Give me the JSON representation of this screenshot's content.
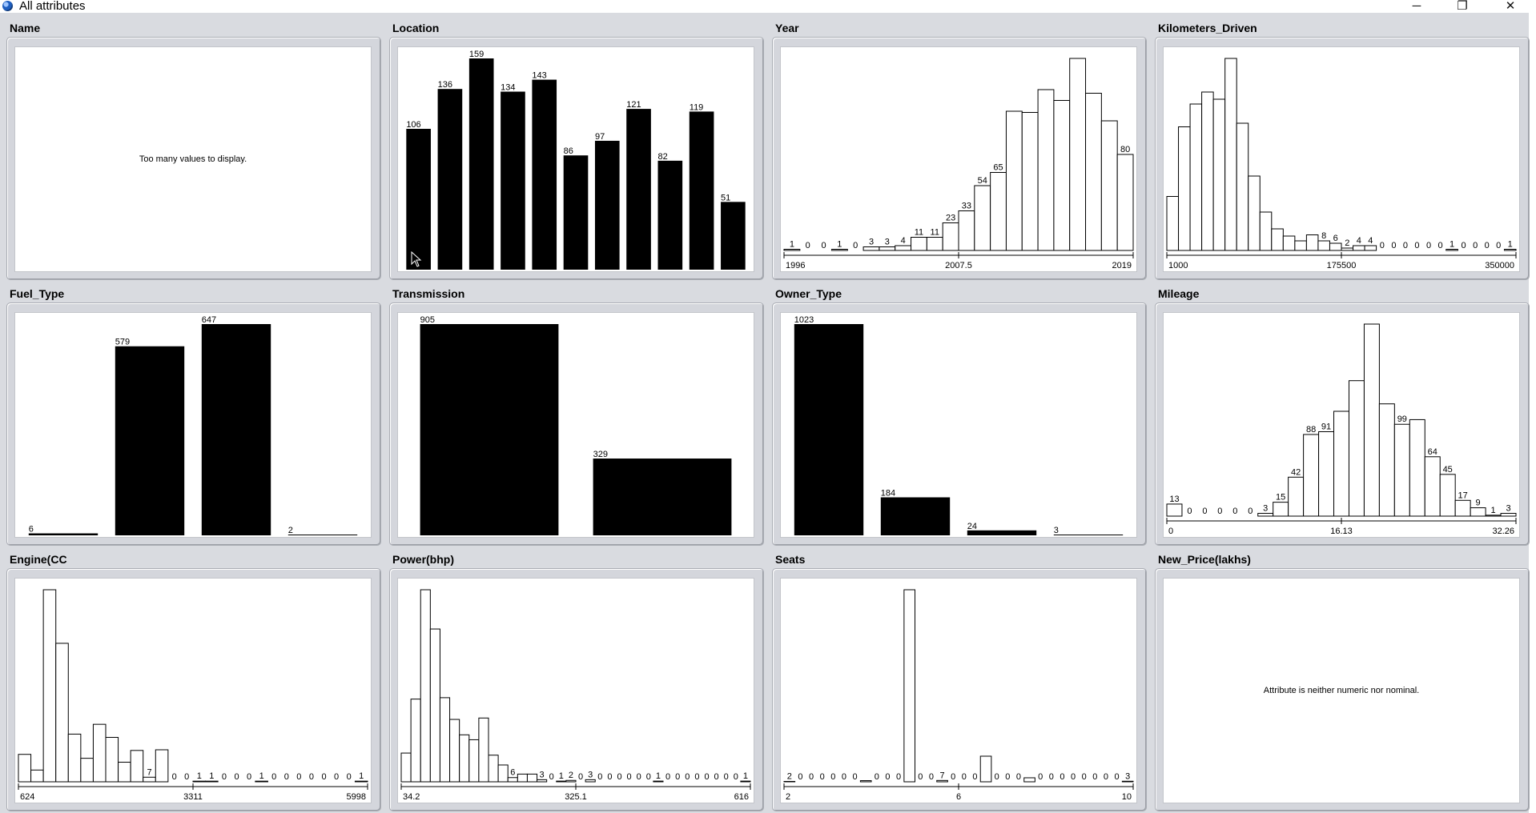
{
  "window": {
    "title": "All attributes",
    "minimize_glyph": "─",
    "maximize_glyph": "❐",
    "close_glyph": "✕"
  },
  "panels": [
    {
      "id": "name",
      "title": "Name",
      "kind": "message",
      "message": "Too many values to display."
    },
    {
      "id": "location",
      "title": "Location",
      "kind": "nominal",
      "chart_data": {
        "type": "bar",
        "values": [
          106,
          136,
          159,
          134,
          143,
          86,
          97,
          121,
          82,
          119,
          51
        ],
        "labels": [
          "106",
          "136",
          "159",
          "134",
          "143",
          "86",
          "97",
          "121",
          "82",
          "119",
          "51"
        ]
      }
    },
    {
      "id": "year",
      "title": "Year",
      "kind": "histogram",
      "chart_data": {
        "type": "bar",
        "values": [
          1,
          0,
          0,
          1,
          0,
          3,
          3,
          4,
          11,
          11,
          23,
          33,
          54,
          65,
          116,
          115,
          134,
          125,
          160,
          131,
          108,
          80
        ],
        "labels": [
          "1",
          "0",
          "0",
          "1",
          "0",
          "3",
          "3",
          "4",
          "11",
          "11",
          "23",
          "33",
          "54",
          "65",
          "",
          "",
          "",
          "",
          "",
          "",
          "",
          "80"
        ],
        "ticks": [
          "1996",
          "2007.5",
          "2019"
        ],
        "ymax": 160
      }
    },
    {
      "id": "km",
      "title": "Kilometers_Driven",
      "kind": "histogram",
      "chart_data": {
        "type": "bar",
        "values": [
          45,
          103,
          122,
          132,
          126,
          160,
          106,
          62,
          32,
          18,
          12,
          8,
          13,
          8,
          6,
          2,
          4,
          4,
          0,
          0,
          0,
          0,
          0,
          0,
          1,
          0,
          0,
          0,
          0,
          1
        ],
        "labels": [
          "",
          "",
          "",
          "",
          "",
          "",
          "",
          "",
          "",
          "",
          "",
          "",
          "",
          "8",
          "6",
          "2",
          "4",
          "4",
          "0",
          "0",
          "0",
          "0",
          "0",
          "0",
          "1",
          "0",
          "0",
          "0",
          "0",
          "1"
        ],
        "ticks": [
          "1000",
          "175500",
          "350000"
        ],
        "ymax": 160
      }
    },
    {
      "id": "fuel",
      "title": "Fuel_Type",
      "kind": "nominal",
      "chart_data": {
        "type": "bar",
        "values": [
          6,
          579,
          647,
          2
        ],
        "labels": [
          "6",
          "579",
          "647",
          "2"
        ]
      }
    },
    {
      "id": "transmission",
      "title": "Transmission",
      "kind": "nominal",
      "chart_data": {
        "type": "bar",
        "values": [
          905,
          329
        ],
        "labels": [
          "905",
          "329"
        ]
      }
    },
    {
      "id": "owner",
      "title": "Owner_Type",
      "kind": "nominal",
      "chart_data": {
        "type": "bar",
        "values": [
          1023,
          184,
          24,
          3
        ],
        "labels": [
          "1023",
          "184",
          "24",
          "3"
        ]
      }
    },
    {
      "id": "mileage",
      "title": "Mileage",
      "kind": "histogram",
      "chart_data": {
        "type": "bar",
        "values": [
          13,
          0,
          0,
          0,
          0,
          0,
          3,
          15,
          42,
          88,
          91,
          113,
          146,
          207,
          121,
          99,
          104,
          64,
          45,
          17,
          9,
          1,
          3
        ],
        "labels": [
          "13",
          "0",
          "0",
          "0",
          "0",
          "0",
          "3",
          "15",
          "42",
          "88",
          "91",
          "",
          "",
          "",
          "",
          "99",
          "",
          "64",
          "45",
          "17",
          "9",
          "1",
          "3"
        ],
        "ticks": [
          "0",
          "16.13",
          "32.26"
        ],
        "ymax": 207
      }
    },
    {
      "id": "engine",
      "title": "Engine(CC",
      "kind": "histogram",
      "chart_data": {
        "type": "bar",
        "values": [
          42,
          18,
          294,
          212,
          73,
          36,
          88,
          68,
          30,
          48,
          7,
          49,
          0,
          0,
          1,
          1,
          0,
          0,
          0,
          1,
          0,
          0,
          0,
          0,
          0,
          0,
          0,
          1
        ],
        "labels": [
          "",
          "",
          "",
          "",
          "",
          "",
          "",
          "",
          "",
          "",
          "7",
          "",
          "0",
          "0",
          "1",
          "1",
          "0",
          "0",
          "0",
          "1",
          "0",
          "0",
          "0",
          "0",
          "0",
          "0",
          "0",
          "1"
        ],
        "ticks": [
          "624",
          "3311",
          "5998"
        ],
        "ymax": 294
      }
    },
    {
      "id": "power",
      "title": "Power(bhp)",
      "kind": "histogram",
      "chart_data": {
        "type": "bar",
        "values": [
          41,
          118,
          274,
          218,
          120,
          89,
          67,
          60,
          91,
          38,
          24,
          6,
          11,
          11,
          3,
          0,
          1,
          2,
          0,
          3,
          0,
          0,
          0,
          0,
          0,
          0,
          1,
          0,
          0,
          0,
          0,
          0,
          0,
          0,
          0,
          1
        ],
        "labels": [
          "",
          "",
          "",
          "",
          "",
          "",
          "",
          "",
          "",
          "",
          "",
          "6",
          "",
          "",
          "3",
          "0",
          "1",
          "2",
          "0",
          "3",
          "0",
          "0",
          "0",
          "0",
          "0",
          "0",
          "1",
          "0",
          "0",
          "0",
          "0",
          "0",
          "0",
          "0",
          "0",
          "1"
        ],
        "ticks": [
          "34.2",
          "325.1",
          "616"
        ],
        "ymax": 274
      }
    },
    {
      "id": "seats",
      "title": "Seats",
      "kind": "histogram",
      "chart_data": {
        "type": "bar",
        "values": [
          2,
          0,
          0,
          0,
          0,
          0,
          0,
          6,
          0,
          0,
          0,
          1005,
          0,
          0,
          7,
          0,
          0,
          0,
          134,
          0,
          0,
          0,
          21,
          0,
          0,
          0,
          0,
          0,
          0,
          0,
          0,
          3
        ],
        "labels": [
          "2",
          "0",
          "0",
          "0",
          "0",
          "0",
          "0",
          "",
          "0",
          "0",
          "0",
          "",
          "0",
          "0",
          "7",
          "0",
          "0",
          "0",
          "",
          "0",
          "0",
          "0",
          "",
          "0",
          "0",
          "0",
          "0",
          "0",
          "0",
          "0",
          "0",
          "3"
        ],
        "ticks": [
          "2",
          "6",
          "10"
        ],
        "ymax": 1005
      }
    },
    {
      "id": "newprice",
      "title": "New_Price(lakhs)",
      "kind": "message",
      "message": "Attribute is neither numeric nor nominal."
    }
  ]
}
